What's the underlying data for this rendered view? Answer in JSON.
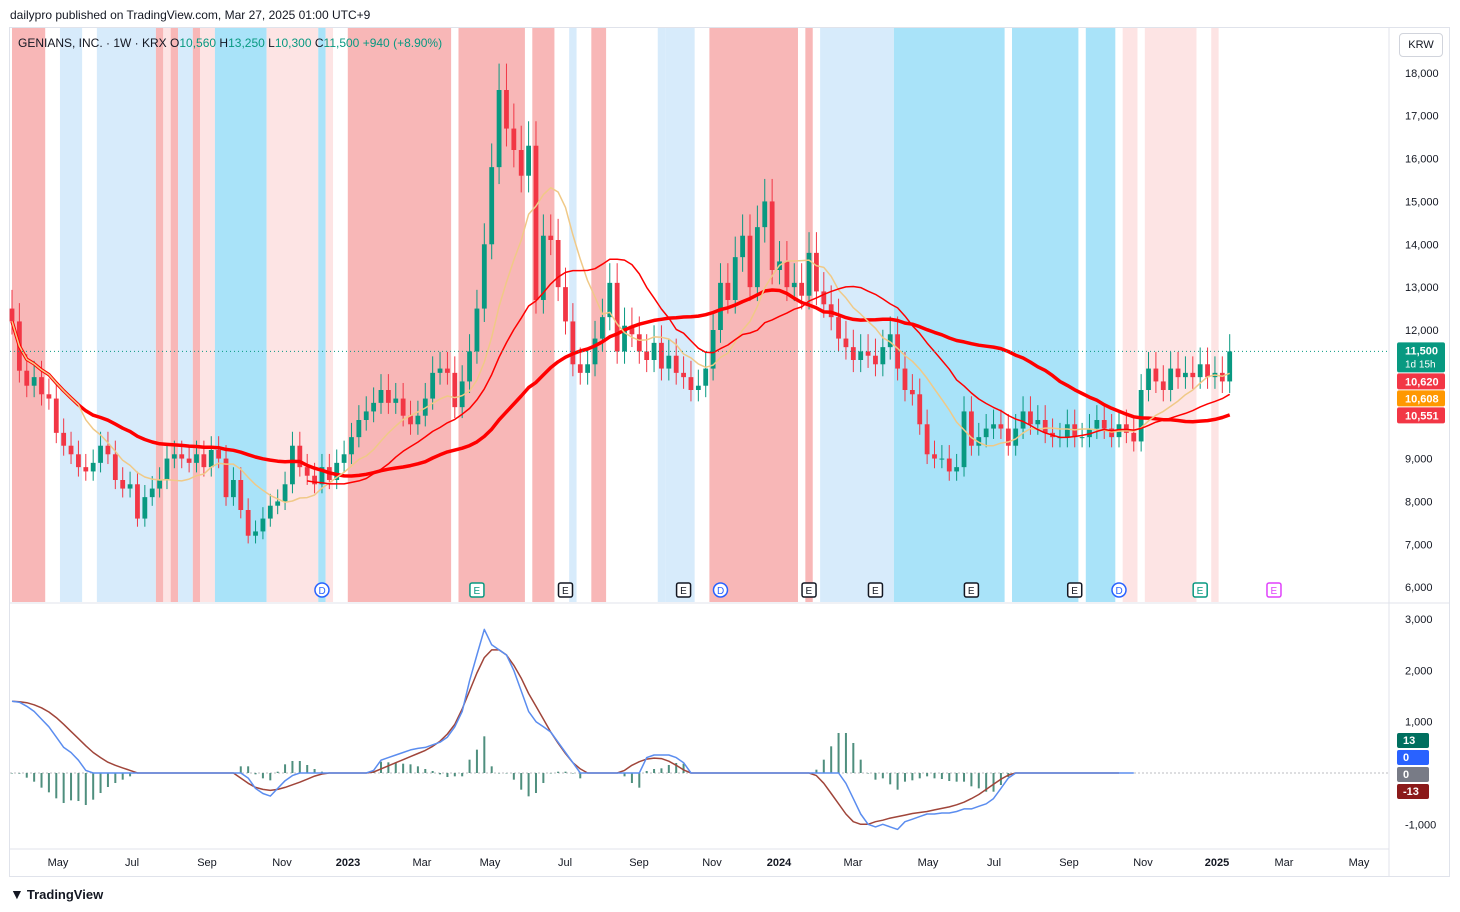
{
  "header": {
    "publisher_line": "dailypro published on TradingView.com, Mar 27, 2025 01:00 UTC+9"
  },
  "legend": {
    "symbol_line": "GENIANS, INC. · 1W · KRX",
    "open_label": "O",
    "open": "10,560",
    "high_label": "H",
    "high": "13,250",
    "low_label": "L",
    "low": "10,300",
    "close_label": "C",
    "close": "11,500",
    "change": "+940 (+8.90%)"
  },
  "currency": "KRW",
  "footer": {
    "brand": "TradingView"
  },
  "colors": {
    "up": "#089981",
    "down": "#f23645",
    "ma_fast": "#ff0000",
    "ma_slow": "#ff0000",
    "ma_tan": "#f0c987",
    "ma_violet": "#8a7cf0",
    "macd": "#5b8def",
    "signal": "#a0453a",
    "hist": "#4f8f7e",
    "bg_red": "#f8b7b7",
    "bg_pink": "#fde4e4",
    "bg_lightblue": "#d7ebfb",
    "bg_cyan": "#a9e3f9"
  },
  "chart_data": [
    {
      "type": "candlestick",
      "title": "GENIANS, INC. · 1W · KRX",
      "x_axis_labels": [
        "May",
        "Jul",
        "Sep",
        "Nov",
        "2023",
        "Mar",
        "May",
        "Jul",
        "Sep",
        "Nov",
        "2024",
        "Mar",
        "May",
        "Jul",
        "Sep",
        "Nov",
        "2025",
        "Mar",
        "May"
      ],
      "y_ticks": [
        "18,000",
        "17,000",
        "16,000",
        "15,000",
        "14,000",
        "13,000",
        "12,000",
        "9,000",
        "8,000",
        "7,000",
        "6,000"
      ],
      "ylim": [
        5700,
        18300
      ],
      "price_labels": [
        {
          "text": "11,500",
          "sub": "1d 15h",
          "value": 11500,
          "color": "#089981"
        },
        {
          "text": "10,620",
          "value": 10620,
          "color": "#f23645"
        },
        {
          "text": "10,608",
          "value": 10608,
          "color": "#ff9800"
        },
        {
          "text": "10,551",
          "value": 10551,
          "color": "#f23645"
        }
      ],
      "event_markers": [
        {
          "label": "D",
          "week": 42,
          "color": "#2962ff"
        },
        {
          "label": "E",
          "week": 63,
          "color": "#089981"
        },
        {
          "label": "E",
          "week": 75,
          "color": "#131722"
        },
        {
          "label": "E",
          "week": 91,
          "color": "#131722"
        },
        {
          "label": "D",
          "week": 96,
          "color": "#2962ff"
        },
        {
          "label": "E",
          "week": 108,
          "color": "#131722"
        },
        {
          "label": "E",
          "week": 117,
          "color": "#131722"
        },
        {
          "label": "E",
          "week": 130,
          "color": "#131722"
        },
        {
          "label": "E",
          "week": 144,
          "color": "#131722"
        },
        {
          "label": "D",
          "week": 150,
          "color": "#2962ff"
        },
        {
          "label": "E",
          "week": 161,
          "color": "#089981"
        },
        {
          "label": "E",
          "week": 171,
          "color": "#e040fb"
        }
      ],
      "background_bands": [
        {
          "from": 0,
          "to": 4.5,
          "color": "red"
        },
        {
          "from": 6.5,
          "to": 9.5,
          "color": "lightblue"
        },
        {
          "from": 11.5,
          "to": 19.5,
          "color": "lightblue"
        },
        {
          "from": 19.5,
          "to": 20.5,
          "color": "red"
        },
        {
          "from": 20.5,
          "to": 21.5,
          "color": "pink"
        },
        {
          "from": 21.5,
          "to": 22.5,
          "color": "red"
        },
        {
          "from": 22.5,
          "to": 24.5,
          "color": "lightblue"
        },
        {
          "from": 24.5,
          "to": 25.5,
          "color": "red"
        },
        {
          "from": 25.5,
          "to": 27.5,
          "color": "pink"
        },
        {
          "from": 27.5,
          "to": 34.5,
          "color": "cyan"
        },
        {
          "from": 34.5,
          "to": 41.5,
          "color": "pink"
        },
        {
          "from": 41.5,
          "to": 42.5,
          "color": "cyan"
        },
        {
          "from": 42.5,
          "to": 43.5,
          "color": "pink"
        },
        {
          "from": 45.5,
          "to": 59.5,
          "color": "red"
        },
        {
          "from": 60.5,
          "to": 69.5,
          "color": "red"
        },
        {
          "from": 70.5,
          "to": 73.5,
          "color": "red"
        },
        {
          "from": 75.5,
          "to": 76.5,
          "color": "lightblue"
        },
        {
          "from": 78.5,
          "to": 80.5,
          "color": "red"
        },
        {
          "from": 87.5,
          "to": 88.5,
          "color": "lightblue"
        },
        {
          "from": 88.5,
          "to": 92.5,
          "color": "lightblue"
        },
        {
          "from": 94.5,
          "to": 106.5,
          "color": "red"
        },
        {
          "from": 107.5,
          "to": 108.5,
          "color": "red"
        },
        {
          "from": 109.5,
          "to": 119.5,
          "color": "lightblue"
        },
        {
          "from": 119.5,
          "to": 134.5,
          "color": "cyan"
        },
        {
          "from": 135.5,
          "to": 144.5,
          "color": "cyan"
        },
        {
          "from": 145.5,
          "to": 149.5,
          "color": "cyan"
        },
        {
          "from": 150.5,
          "to": 152.5,
          "color": "pink"
        },
        {
          "from": 153.5,
          "to": 160.5,
          "color": "pink"
        },
        {
          "from": 162.5,
          "to": 163.5,
          "color": "pink"
        }
      ],
      "close": [
        12200,
        11050,
        10700,
        10900,
        10500,
        10400,
        9600,
        9300,
        9100,
        8800,
        8700,
        8900,
        9300,
        9100,
        8500,
        8300,
        8400,
        7600,
        8100,
        8300,
        8500,
        9000,
        9100,
        9000,
        8900,
        9100,
        8800,
        9200,
        9000,
        8100,
        8500,
        7800,
        7200,
        7300,
        7600,
        7900,
        8000,
        8400,
        9300,
        8800,
        8600,
        8400,
        8800,
        8500,
        8900,
        9100,
        9500,
        9900,
        10100,
        10300,
        10600,
        10300,
        10400,
        10000,
        9800,
        10000,
        10400,
        11000,
        11100,
        11000,
        10200,
        10800,
        11500,
        12500,
        14000,
        15800,
        17600,
        16700,
        16200,
        15600,
        16300,
        12700,
        14200,
        14100,
        13000,
        12200,
        11200,
        11000,
        11200,
        11800,
        12300,
        13100,
        11500,
        12100,
        11900,
        11500,
        11300,
        11700,
        11100,
        11400,
        11000,
        10900,
        10600,
        10700,
        11100,
        12000,
        13100,
        12700,
        13700,
        14200,
        13000,
        14400,
        15000,
        13400,
        13600,
        13000,
        13100,
        12800,
        13800,
        12900,
        12600,
        12300,
        11800,
        11600,
        11300,
        11500,
        11400,
        11200,
        11600,
        11900,
        11100,
        10600,
        10500,
        9800,
        9100,
        9000,
        9000,
        8700,
        8800,
        10100,
        9300,
        9500,
        9700,
        9800,
        9700,
        9300,
        9700,
        10100,
        9800,
        9900,
        9600,
        9500,
        9500,
        9800,
        9500,
        9500,
        9700,
        9900,
        9700,
        9500,
        9800,
        9600,
        9400,
        10600,
        11100,
        10800,
        10600,
        11100,
        10900,
        11000,
        10900,
        11200,
        10900,
        11000,
        10800,
        11500
      ],
      "macd": [
        1400,
        1380,
        1300,
        1200,
        1050,
        900,
        700,
        500,
        400,
        250,
        50,
        0,
        0,
        0,
        0,
        0,
        0,
        0,
        0,
        0,
        0,
        0,
        0,
        0,
        0,
        0,
        0,
        0,
        0,
        0,
        0,
        0,
        -100,
        -300,
        -400,
        -450,
        -300,
        -150,
        -50,
        0,
        0,
        0,
        0,
        0,
        0,
        0,
        0,
        0,
        0,
        50,
        250,
        300,
        350,
        400,
        450,
        480,
        500,
        550,
        600,
        700,
        900,
        1200,
        1800,
        2300,
        2800,
        2500,
        2400,
        2300,
        2000,
        1600,
        1200,
        1000,
        900,
        800,
        600,
        400,
        200,
        0,
        0,
        0,
        0,
        0,
        0,
        0,
        0,
        0,
        300,
        350,
        350,
        350,
        300,
        200,
        0,
        0,
        0,
        0,
        0,
        0,
        0,
        0,
        0,
        0,
        0,
        0,
        0,
        0,
        0,
        0,
        0,
        0,
        0,
        0,
        0,
        -200,
        -500,
        -800,
        -1000,
        -1050,
        -1000,
        -1050,
        -1100,
        -950,
        -900,
        -850,
        -800,
        -800,
        -780,
        -780,
        -750,
        -700,
        -700,
        -650,
        -600,
        -500,
        -300,
        -100,
        0,
        0,
        0,
        0,
        0,
        0,
        0,
        0,
        0,
        0,
        0,
        0,
        0,
        0,
        0,
        0,
        0
      ],
      "signal": [
        1400,
        1390,
        1370,
        1330,
        1270,
        1190,
        1080,
        950,
        810,
        670,
        530,
        400,
        300,
        210,
        150,
        100,
        50,
        0,
        0,
        0,
        0,
        0,
        0,
        0,
        0,
        0,
        0,
        0,
        0,
        0,
        0,
        -100,
        -200,
        -280,
        -320,
        -340,
        -320,
        -280,
        -230,
        -180,
        -120,
        -60,
        -20,
        0,
        0,
        0,
        0,
        0,
        0,
        20,
        80,
        140,
        200,
        260,
        320,
        380,
        440,
        520,
        620,
        760,
        950,
        1250,
        1600,
        1950,
        2250,
        2400,
        2400,
        2300,
        2100,
        1850,
        1550,
        1300,
        1050,
        800,
        580,
        380,
        200,
        80,
        0,
        0,
        0,
        0,
        0,
        50,
        150,
        220,
        270,
        290,
        280,
        230,
        150,
        60,
        0,
        0,
        0,
        0,
        0,
        0,
        0,
        0,
        0,
        0,
        0,
        0,
        0,
        0,
        0,
        0,
        0,
        -50,
        -200,
        -400,
        -600,
        -800,
        -950,
        -1000,
        -1000,
        -950,
        -920,
        -880,
        -850,
        -820,
        -790,
        -770,
        -750,
        -720,
        -690,
        -660,
        -620,
        -570,
        -500,
        -420,
        -320,
        -220,
        -120,
        -40,
        0,
        0,
        0,
        0,
        0,
        0,
        0,
        0,
        0,
        0,
        0,
        0,
        0,
        0,
        0
      ],
      "macd_y_ticks": [
        "3,000",
        "2,000",
        "1,000",
        "0",
        "-1,000"
      ],
      "macd_labels": [
        {
          "text": "13",
          "color": "#006f5f"
        },
        {
          "text": "0",
          "color": "#2962ff"
        },
        {
          "text": "0",
          "color": "#787b86"
        },
        {
          "text": "-13",
          "color": "#8b1a1a"
        }
      ]
    }
  ]
}
